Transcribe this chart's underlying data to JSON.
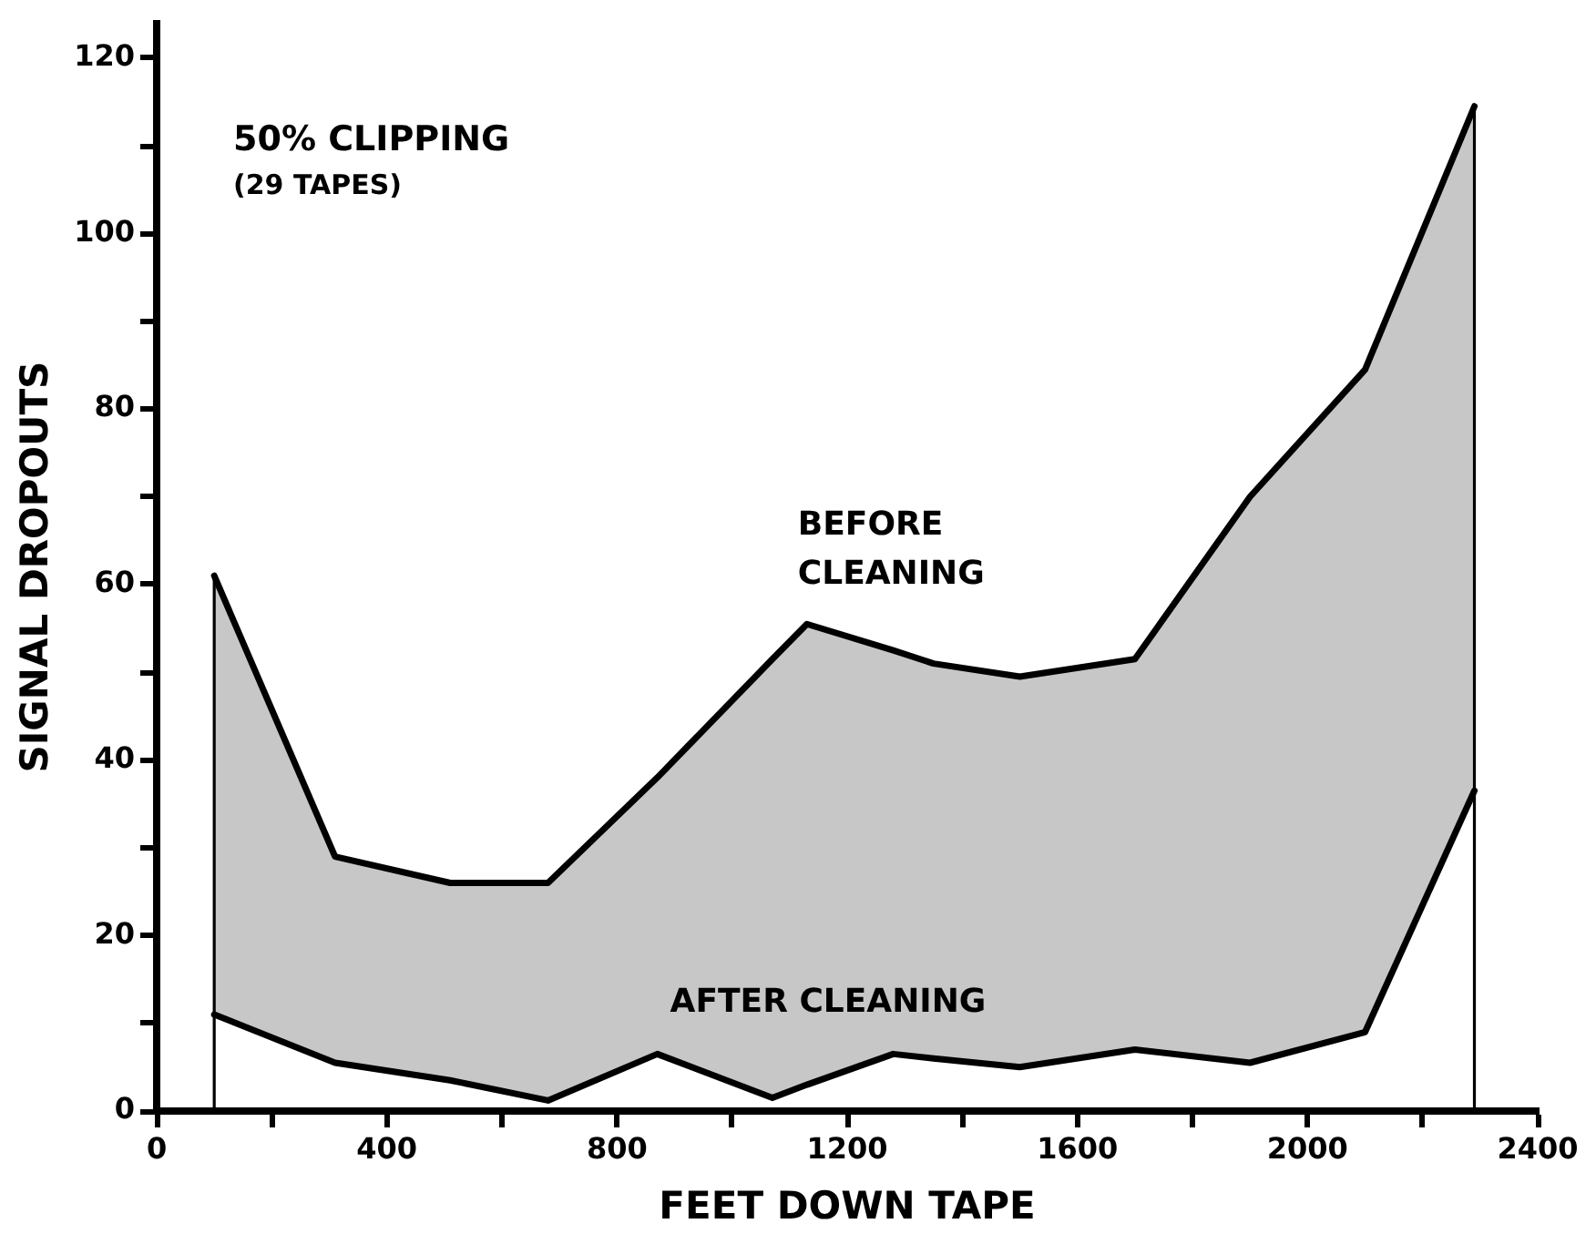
{
  "chart_data": {
    "type": "line",
    "xlabel": "FEET DOWN TAPE",
    "ylabel": "SIGNAL DROPOUTS",
    "annotations": [
      "50% CLIPPING",
      "(29 TAPES)"
    ],
    "x": [
      100,
      310,
      510,
      680,
      870,
      1070,
      1130,
      1280,
      1350,
      1500,
      1700,
      1900,
      2100,
      2290
    ],
    "series": [
      {
        "name": "BEFORE CLEANING",
        "color": "#000000",
        "values": [
          61,
          29,
          26,
          26,
          38,
          51.5,
          55.5,
          52.5,
          51,
          49.5,
          51.5,
          70,
          84.5,
          114.5
        ],
        "lower": [
          11,
          5.5,
          3.5,
          1.2,
          6.5,
          1.5,
          3,
          6.5,
          6,
          5,
          7,
          5.5,
          9,
          36.5
        ],
        "upper": [
          61,
          29,
          26,
          26,
          38,
          51.5,
          55.5,
          52.5,
          51,
          49.5,
          51.5,
          70,
          84.5,
          114.5
        ]
      },
      {
        "name": "AFTER CLEANING",
        "color": "#000000",
        "values": [
          11,
          5.5,
          3.5,
          1.2,
          6.5,
          1.5,
          3,
          6.5,
          6,
          5,
          7,
          5.5,
          9,
          36.5
        ]
      }
    ],
    "ref_lines": [
      {
        "axis": "x",
        "value": 100,
        "color": "#000000"
      },
      {
        "axis": "x",
        "value": 2290,
        "color": "#000000"
      }
    ],
    "xlim": [
      0,
      2400
    ],
    "xticks": [
      0,
      {
        "value": 200,
        "label": null
      },
      400,
      {
        "value": 600,
        "label": null
      },
      800,
      {
        "value": 1000,
        "label": null
      },
      1200,
      {
        "value": 1400,
        "label": null
      },
      1600,
      {
        "value": 1800,
        "label": null
      },
      2000,
      {
        "value": 2200,
        "label": null
      },
      2400
    ],
    "ylim": [
      0,
      124
    ],
    "yticks": [
      0,
      {
        "value": 10,
        "label": null
      },
      20,
      {
        "value": 30,
        "label": null
      },
      40,
      {
        "value": 50,
        "label": null
      },
      60,
      {
        "value": 70,
        "label": null
      },
      80,
      {
        "value": 90,
        "label": null
      },
      100,
      {
        "value": 110,
        "label": null
      },
      120
    ],
    "marker": "none",
    "line_style": "solid",
    "legend": false
  }
}
